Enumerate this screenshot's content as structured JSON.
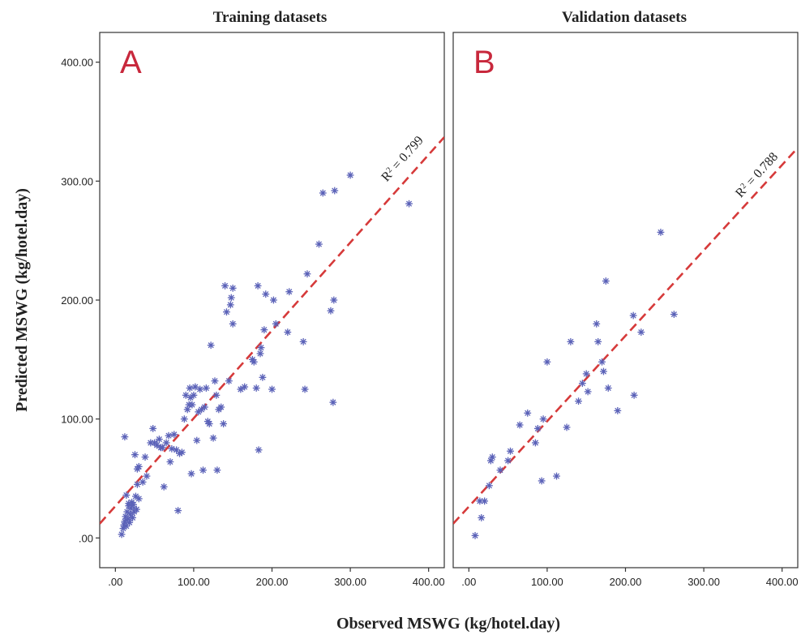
{
  "colors": {
    "points": "#5b62b8",
    "fit_line": "#d63a3a",
    "panel_letter": "#c8283c",
    "frame": "#333333"
  },
  "figure": {
    "xlabel": "Observed MSWG (kg/hotel.day)",
    "ylabel": "Predicted MSWG (kg/hotel.day)"
  },
  "chart_data": [
    {
      "type": "scatter",
      "title": "Training datasets",
      "panel_label": "A",
      "annotation": {
        "r2_prefix": "R",
        "r2_sup": "2",
        "r2_text": " = 0.799",
        "r2_value": 0.799
      },
      "fit_line": {
        "style": "dashed",
        "x": [
          -20,
          420
        ],
        "y": [
          12,
          337
        ]
      },
      "xlim": [
        -20,
        420
      ],
      "ylim": [
        -25,
        425
      ],
      "xticks": [
        0,
        100,
        200,
        300,
        400
      ],
      "xtick_labels": [
        ".00",
        "100.00",
        "200.00",
        "300.00",
        "400.00"
      ],
      "yticks": [
        0,
        100,
        200,
        300,
        400
      ],
      "ytick_labels": [
        ".00",
        "100.00",
        "200.00",
        "300.00",
        "400.00"
      ],
      "grid": false,
      "points": [
        [
          8,
          3
        ],
        [
          10,
          8
        ],
        [
          11,
          11
        ],
        [
          12,
          14
        ],
        [
          13,
          18
        ],
        [
          14,
          10
        ],
        [
          15,
          22
        ],
        [
          16,
          16
        ],
        [
          17,
          27
        ],
        [
          18,
          13
        ],
        [
          19,
          20
        ],
        [
          20,
          25
        ],
        [
          21,
          30
        ],
        [
          22,
          17
        ],
        [
          23,
          28
        ],
        [
          24,
          22
        ],
        [
          26,
          35
        ],
        [
          27,
          24
        ],
        [
          28,
          45
        ],
        [
          30,
          33
        ],
        [
          12,
          85
        ],
        [
          14,
          36
        ],
        [
          17,
          29
        ],
        [
          25,
          70
        ],
        [
          28,
          58
        ],
        [
          30,
          60
        ],
        [
          35,
          47
        ],
        [
          38,
          68
        ],
        [
          40,
          52
        ],
        [
          45,
          80
        ],
        [
          48,
          92
        ],
        [
          50,
          80
        ],
        [
          53,
          78
        ],
        [
          56,
          83
        ],
        [
          58,
          76
        ],
        [
          60,
          76
        ],
        [
          62,
          43
        ],
        [
          65,
          80
        ],
        [
          68,
          86
        ],
        [
          70,
          64
        ],
        [
          72,
          75
        ],
        [
          75,
          87
        ],
        [
          78,
          74
        ],
        [
          80,
          23
        ],
        [
          82,
          71
        ],
        [
          85,
          72
        ],
        [
          88,
          100
        ],
        [
          90,
          120
        ],
        [
          92,
          108
        ],
        [
          94,
          112
        ],
        [
          95,
          126
        ],
        [
          96,
          118
        ],
        [
          97,
          54
        ],
        [
          98,
          112
        ],
        [
          100,
          120
        ],
        [
          102,
          127
        ],
        [
          104,
          82
        ],
        [
          106,
          106
        ],
        [
          108,
          125
        ],
        [
          110,
          108
        ],
        [
          112,
          57
        ],
        [
          114,
          110
        ],
        [
          116,
          126
        ],
        [
          118,
          98
        ],
        [
          120,
          96
        ],
        [
          122,
          162
        ],
        [
          125,
          84
        ],
        [
          127,
          132
        ],
        [
          129,
          120
        ],
        [
          130,
          57
        ],
        [
          132,
          108
        ],
        [
          135,
          110
        ],
        [
          138,
          96
        ],
        [
          140,
          212
        ],
        [
          142,
          190
        ],
        [
          145,
          132
        ],
        [
          147,
          196
        ],
        [
          148,
          202
        ],
        [
          150,
          180
        ],
        [
          150,
          210
        ],
        [
          160,
          125
        ],
        [
          165,
          127
        ],
        [
          175,
          150
        ],
        [
          177,
          148
        ],
        [
          180,
          126
        ],
        [
          182,
          212
        ],
        [
          183,
          74
        ],
        [
          185,
          155
        ],
        [
          186,
          160
        ],
        [
          188,
          135
        ],
        [
          190,
          175
        ],
        [
          192,
          205
        ],
        [
          200,
          125
        ],
        [
          202,
          200
        ],
        [
          205,
          180
        ],
        [
          220,
          173
        ],
        [
          222,
          207
        ],
        [
          240,
          165
        ],
        [
          242,
          125
        ],
        [
          245,
          222
        ],
        [
          260,
          247
        ],
        [
          265,
          290
        ],
        [
          275,
          191
        ],
        [
          278,
          114
        ],
        [
          279,
          200
        ],
        [
          280,
          292
        ],
        [
          300,
          305
        ],
        [
          375,
          281
        ]
      ]
    },
    {
      "type": "scatter",
      "title": "Validation datasets",
      "panel_label": "B",
      "annotation": {
        "r2_prefix": "R",
        "r2_sup": "2",
        "r2_text": " = 0.788",
        "r2_value": 0.788
      },
      "fit_line": {
        "style": "dashed",
        "x": [
          -20,
          420
        ],
        "y": [
          12,
          328
        ]
      },
      "xlim": [
        -20,
        420
      ],
      "ylim": [
        -25,
        425
      ],
      "xticks": [
        0,
        100,
        200,
        300,
        400
      ],
      "xtick_labels": [
        ".00",
        "100.00",
        "200.00",
        "300.00",
        "400.00"
      ],
      "yticks": [
        0,
        100,
        200,
        300,
        400
      ],
      "ytick_labels": [
        ".00",
        "100.00",
        "200.00",
        "300.00",
        "400.00"
      ],
      "grid": false,
      "points": [
        [
          8,
          2
        ],
        [
          14,
          31
        ],
        [
          16,
          17
        ],
        [
          20,
          31
        ],
        [
          26,
          44
        ],
        [
          28,
          65
        ],
        [
          30,
          68
        ],
        [
          40,
          57
        ],
        [
          50,
          65
        ],
        [
          53,
          73
        ],
        [
          65,
          95
        ],
        [
          75,
          105
        ],
        [
          85,
          80
        ],
        [
          88,
          92
        ],
        [
          93,
          48
        ],
        [
          95,
          100
        ],
        [
          100,
          148
        ],
        [
          112,
          52
        ],
        [
          125,
          93
        ],
        [
          130,
          165
        ],
        [
          140,
          115
        ],
        [
          145,
          130
        ],
        [
          150,
          138
        ],
        [
          152,
          123
        ],
        [
          163,
          180
        ],
        [
          165,
          165
        ],
        [
          170,
          148
        ],
        [
          172,
          140
        ],
        [
          175,
          216
        ],
        [
          178,
          126
        ],
        [
          190,
          107
        ],
        [
          210,
          187
        ],
        [
          211,
          120
        ],
        [
          220,
          173
        ],
        [
          245,
          257
        ],
        [
          262,
          188
        ]
      ]
    }
  ]
}
